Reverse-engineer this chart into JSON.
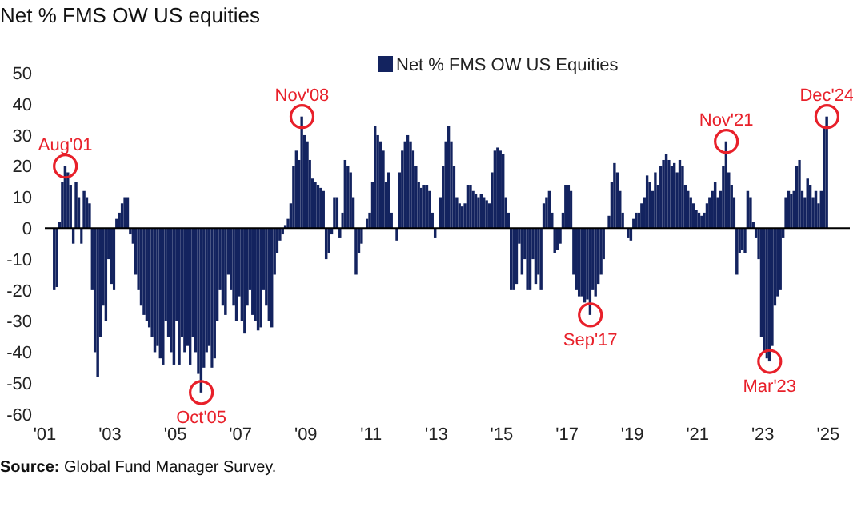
{
  "chart_data": {
    "type": "bar",
    "title": "Net % FMS OW US equities",
    "x": [
      "2001-04",
      "2001-05",
      "2001-06",
      "2001-07",
      "2001-08",
      "2001-09",
      "2001-10",
      "2001-11",
      "2001-12",
      "2002-01",
      "2002-02",
      "2002-03",
      "2002-04",
      "2002-05",
      "2002-06",
      "2002-07",
      "2002-08",
      "2002-09",
      "2002-10",
      "2002-11",
      "2002-12",
      "2003-01",
      "2003-02",
      "2003-03",
      "2003-04",
      "2003-05",
      "2003-06",
      "2003-07",
      "2003-08",
      "2003-09",
      "2003-10",
      "2003-11",
      "2003-12",
      "2004-01",
      "2004-02",
      "2004-03",
      "2004-04",
      "2004-05",
      "2004-06",
      "2004-07",
      "2004-08",
      "2004-09",
      "2004-10",
      "2004-11",
      "2004-12",
      "2005-01",
      "2005-02",
      "2005-03",
      "2005-04",
      "2005-05",
      "2005-06",
      "2005-07",
      "2005-08",
      "2005-09",
      "2005-10",
      "2005-11",
      "2005-12",
      "2006-01",
      "2006-02",
      "2006-03",
      "2006-04",
      "2006-05",
      "2006-06",
      "2006-07",
      "2006-08",
      "2006-09",
      "2006-10",
      "2006-11",
      "2006-12",
      "2007-01",
      "2007-02",
      "2007-03",
      "2007-04",
      "2007-05",
      "2007-06",
      "2007-07",
      "2007-08",
      "2007-09",
      "2007-10",
      "2007-11",
      "2007-12",
      "2008-01",
      "2008-02",
      "2008-03",
      "2008-04",
      "2008-05",
      "2008-06",
      "2008-07",
      "2008-08",
      "2008-09",
      "2008-10",
      "2008-11",
      "2008-12",
      "2009-01",
      "2009-02",
      "2009-03",
      "2009-04",
      "2009-05",
      "2009-06",
      "2009-07",
      "2009-08",
      "2009-09",
      "2009-10",
      "2009-11",
      "2009-12",
      "2010-01",
      "2010-02",
      "2010-03",
      "2010-04",
      "2010-05",
      "2010-06",
      "2010-07",
      "2010-08",
      "2010-09",
      "2010-10",
      "2010-11",
      "2010-12",
      "2011-01",
      "2011-02",
      "2011-03",
      "2011-04",
      "2011-05",
      "2011-06",
      "2011-07",
      "2011-08",
      "2011-09",
      "2011-10",
      "2011-11",
      "2011-12",
      "2012-01",
      "2012-02",
      "2012-03",
      "2012-04",
      "2012-05",
      "2012-06",
      "2012-07",
      "2012-08",
      "2012-09",
      "2012-10",
      "2012-11",
      "2012-12",
      "2013-01",
      "2013-02",
      "2013-03",
      "2013-04",
      "2013-05",
      "2013-06",
      "2013-07",
      "2013-08",
      "2013-09",
      "2013-10",
      "2013-11",
      "2013-12",
      "2014-01",
      "2014-02",
      "2014-03",
      "2014-04",
      "2014-05",
      "2014-06",
      "2014-07",
      "2014-08",
      "2014-09",
      "2014-10",
      "2014-11",
      "2014-12",
      "2015-01",
      "2015-02",
      "2015-03",
      "2015-04",
      "2015-05",
      "2015-06",
      "2015-07",
      "2015-08",
      "2015-09",
      "2015-10",
      "2015-11",
      "2015-12",
      "2016-01",
      "2016-02",
      "2016-03",
      "2016-04",
      "2016-05",
      "2016-06",
      "2016-07",
      "2016-08",
      "2016-09",
      "2016-10",
      "2016-11",
      "2016-12",
      "2017-01",
      "2017-02",
      "2017-03",
      "2017-04",
      "2017-05",
      "2017-06",
      "2017-07",
      "2017-08",
      "2017-09",
      "2017-10",
      "2017-11",
      "2017-12",
      "2018-01",
      "2018-02",
      "2018-03",
      "2018-04",
      "2018-05",
      "2018-06",
      "2018-07",
      "2018-08",
      "2018-09",
      "2018-10",
      "2018-11",
      "2018-12",
      "2019-01",
      "2019-02",
      "2019-03",
      "2019-04",
      "2019-05",
      "2019-06",
      "2019-07",
      "2019-08",
      "2019-09",
      "2019-10",
      "2019-11",
      "2019-12",
      "2020-01",
      "2020-02",
      "2020-03",
      "2020-04",
      "2020-05",
      "2020-06",
      "2020-07",
      "2020-08",
      "2020-09",
      "2020-10",
      "2020-11",
      "2020-12",
      "2021-01",
      "2021-02",
      "2021-03",
      "2021-04",
      "2021-05",
      "2021-06",
      "2021-07",
      "2021-08",
      "2021-09",
      "2021-10",
      "2021-11",
      "2021-12",
      "2022-01",
      "2022-02",
      "2022-03",
      "2022-04",
      "2022-05",
      "2022-06",
      "2022-07",
      "2022-08",
      "2022-09",
      "2022-10",
      "2022-11",
      "2022-12",
      "2023-01",
      "2023-02",
      "2023-03",
      "2023-04",
      "2023-05",
      "2023-06",
      "2023-07",
      "2023-08",
      "2023-09",
      "2023-10",
      "2023-11",
      "2023-12",
      "2024-01",
      "2024-02",
      "2024-03",
      "2024-04",
      "2024-05",
      "2024-06",
      "2024-07",
      "2024-08",
      "2024-09",
      "2024-10",
      "2024-11",
      "2024-12"
    ],
    "series": [
      {
        "name": "Net % FMS OW US Equities",
        "color": "#13235f",
        "values": [
          -20,
          -19,
          2,
          15,
          20,
          18,
          14,
          -5,
          15,
          10,
          -5,
          12,
          10,
          8,
          -20,
          -40,
          -48,
          -35,
          -25,
          -30,
          -10,
          -18,
          -20,
          3,
          5,
          8,
          10,
          10,
          -2,
          -5,
          -15,
          -20,
          -25,
          -28,
          -30,
          -32,
          -35,
          -40,
          -38,
          -42,
          -44,
          -30,
          -35,
          -40,
          -44,
          -30,
          -44,
          -35,
          -40,
          -38,
          -44,
          -35,
          -40,
          -47,
          -53,
          -45,
          -40,
          -38,
          -45,
          -42,
          -30,
          -20,
          -25,
          -28,
          -15,
          -20,
          -25,
          -30,
          -22,
          -30,
          -34,
          -25,
          -20,
          -28,
          -30,
          -33,
          -32,
          -20,
          -25,
          -30,
          -32,
          -15,
          -8,
          -4,
          -2,
          1,
          3,
          8,
          20,
          25,
          22,
          36,
          30,
          28,
          22,
          16,
          15,
          14,
          13,
          12,
          -10,
          -8,
          -2,
          10,
          10,
          -3,
          5,
          22,
          20,
          18,
          10,
          -15,
          -8,
          -5,
          0,
          3,
          5,
          15,
          33,
          30,
          28,
          25,
          15,
          18,
          5,
          0,
          -4,
          18,
          25,
          28,
          30,
          28,
          25,
          20,
          15,
          13,
          14,
          14,
          12,
          5,
          -3,
          0,
          10,
          20,
          28,
          33,
          28,
          20,
          10,
          8,
          7,
          8,
          14,
          14,
          12,
          11,
          10,
          11,
          10,
          9,
          8,
          18,
          25,
          26,
          25,
          24,
          10,
          5,
          -20,
          -20,
          -18,
          -5,
          -15,
          -10,
          -20,
          -20,
          -10,
          -18,
          -15,
          -20,
          8,
          10,
          12,
          5,
          -8,
          -7,
          -5,
          5,
          14,
          14,
          12,
          -15,
          -20,
          -22,
          -22,
          -24,
          -23,
          -28,
          -20,
          -22,
          -18,
          -15,
          -10,
          0,
          4,
          15,
          21,
          18,
          12,
          5,
          0,
          -3,
          -4,
          3,
          5,
          5,
          8,
          10,
          17,
          15,
          12,
          18,
          14,
          20,
          22,
          24,
          22,
          20,
          21,
          18,
          22,
          20,
          14,
          12,
          10,
          8,
          6,
          5,
          4,
          5,
          8,
          10,
          12,
          15,
          10,
          12,
          20,
          28,
          18,
          14,
          10,
          -15,
          -8,
          -7,
          -8,
          12,
          10,
          2,
          -3,
          -10,
          -35,
          -40,
          -42,
          -43,
          -38,
          -25,
          -22,
          -20,
          -3,
          10,
          12,
          11,
          12,
          20,
          22,
          12,
          10,
          16,
          14,
          10,
          12,
          8,
          12,
          33,
          36
        ]
      }
    ],
    "xlim": [
      "2001-01",
      "2025-09"
    ],
    "xticks": [
      {
        "value": "2001-01",
        "label": "'01"
      },
      {
        "value": "2003-01",
        "label": "'03"
      },
      {
        "value": "2005-01",
        "label": "'05"
      },
      {
        "value": "2007-01",
        "label": "'07"
      },
      {
        "value": "2009-01",
        "label": "'09"
      },
      {
        "value": "2011-01",
        "label": "'11"
      },
      {
        "value": "2013-01",
        "label": "'13"
      },
      {
        "value": "2015-01",
        "label": "'15"
      },
      {
        "value": "2017-01",
        "label": "'17"
      },
      {
        "value": "2019-01",
        "label": "'19"
      },
      {
        "value": "2021-01",
        "label": "'21"
      },
      {
        "value": "2023-01",
        "label": "'23"
      },
      {
        "value": "2025-01",
        "label": "'25"
      }
    ],
    "ylim": [
      -60,
      55
    ],
    "yticks": [
      -60,
      -50,
      -40,
      -30,
      -20,
      -10,
      0,
      10,
      20,
      30,
      40,
      50
    ],
    "legend": "top",
    "annotations": [
      {
        "text": "Aug'01",
        "x": "2001-08",
        "y": 20
      },
      {
        "text": "Oct'05",
        "x": "2005-10",
        "y": -53
      },
      {
        "text": "Nov'08",
        "x": "2008-11",
        "y": 36
      },
      {
        "text": "Sep'17",
        "x": "2017-09",
        "y": -28
      },
      {
        "text": "Nov'21",
        "x": "2021-11",
        "y": 28
      },
      {
        "text": "Mar'23",
        "x": "2023-03",
        "y": -43
      },
      {
        "text": "Dec'24",
        "x": "2024-12",
        "y": 36
      },
      "Source: Global Fund Manager Survey."
    ]
  }
}
